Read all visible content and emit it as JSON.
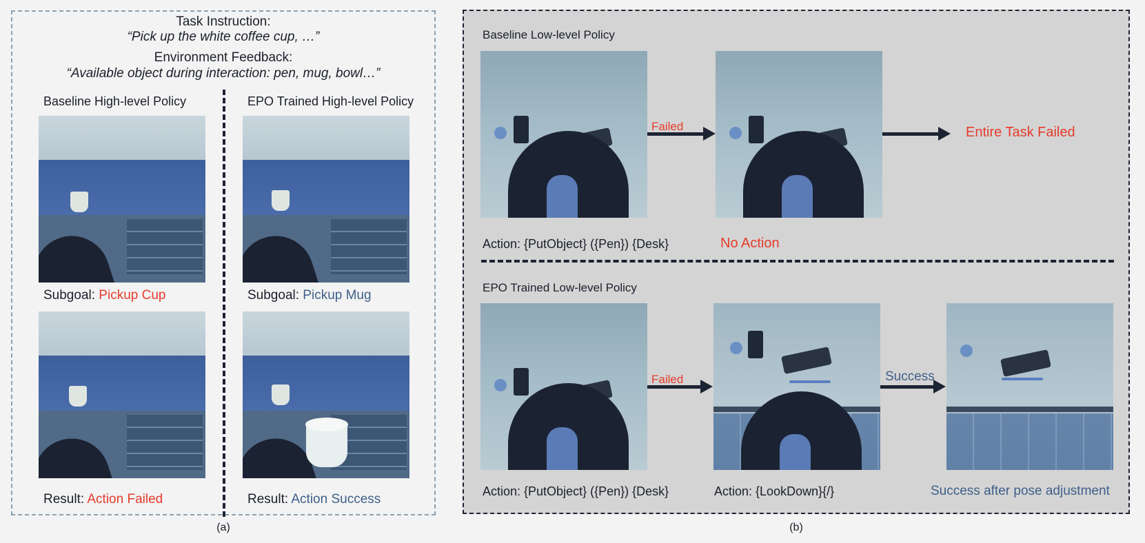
{
  "panel_a": {
    "caption": "(a)",
    "task_heading": "Task Instruction:",
    "task_text": "“Pick up the white coffee cup, …”",
    "env_heading": "Environment Feedback:",
    "env_text": "“Available object during interaction: pen, mug, bowl…”",
    "left_col": {
      "title": "Baseline High-level Policy",
      "subgoal_prefix": "Subgoal: ",
      "subgoal_value": "Pickup Cup",
      "result_prefix": "Result: ",
      "result_value": "Action Failed"
    },
    "right_col": {
      "title": "EPO Trained High-level Policy",
      "subgoal_prefix": "Subgoal: ",
      "subgoal_value": "Pickup Mug",
      "result_prefix": "Result: ",
      "result_value": "Action Success"
    }
  },
  "panel_b": {
    "caption": "(b)",
    "top": {
      "title": "Baseline Low-level Policy",
      "arrow1_label": "Failed",
      "final_text": "Entire Task Failed",
      "action1": "Action: {PutObject} ({Pen}) {Desk}",
      "action2": "No Action"
    },
    "bottom": {
      "title": "EPO Trained Low-level Policy",
      "arrow1_label": "Failed",
      "arrow2_label": "Success",
      "action1": "Action: {PutObject} ({Pen}) {Desk}",
      "action2": "Action: {LookDown}{/}",
      "final_text": "Success after pose adjustment"
    }
  },
  "colors": {
    "failure": "#e53b2c",
    "success": "#3e5f8a",
    "text": "#1b1f2a",
    "panel_b_bg": "#d4d4d4"
  }
}
